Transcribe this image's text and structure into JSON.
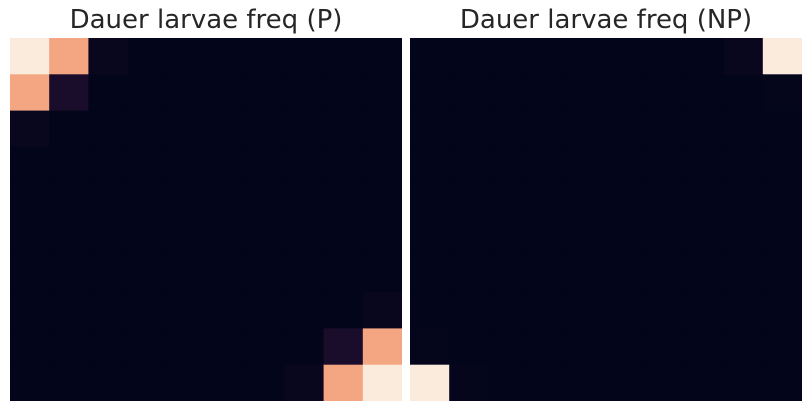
{
  "chart_data": [
    {
      "type": "heatmap",
      "title": "Dauer larvae freq (P)",
      "xlabel": "",
      "ylabel": "",
      "grid": false,
      "colorscale": [
        "#03051a",
        "#1f0f30",
        "#f4a582",
        "#faebdd"
      ],
      "vmin": 0,
      "vmax": 1,
      "values": [
        [
          1.0,
          0.6,
          0.02,
          0,
          0,
          0,
          0,
          0,
          0,
          0
        ],
        [
          0.6,
          0.1,
          0,
          0,
          0,
          0,
          0,
          0,
          0,
          0
        ],
        [
          0.02,
          0,
          0,
          0,
          0,
          0,
          0,
          0,
          0,
          0
        ],
        [
          0,
          0,
          0,
          0,
          0,
          0,
          0,
          0,
          0,
          0
        ],
        [
          0,
          0,
          0,
          0,
          0,
          0,
          0,
          0,
          0,
          0
        ],
        [
          0,
          0,
          0,
          0,
          0,
          0,
          0,
          0,
          0,
          0
        ],
        [
          0,
          0,
          0,
          0,
          0,
          0,
          0,
          0,
          0,
          0
        ],
        [
          0,
          0,
          0,
          0,
          0,
          0,
          0,
          0,
          0,
          0.02
        ],
        [
          0,
          0,
          0,
          0,
          0,
          0,
          0,
          0,
          0.1,
          0.6
        ],
        [
          0,
          0,
          0,
          0,
          0,
          0,
          0,
          0.02,
          0.6,
          1.0
        ]
      ]
    },
    {
      "type": "heatmap",
      "title": "Dauer larvae freq (NP)",
      "xlabel": "",
      "ylabel": "",
      "grid": false,
      "colorscale": [
        "#03051a",
        "#1f0f30",
        "#f4a582",
        "#faebdd"
      ],
      "vmin": 0,
      "vmax": 1,
      "values": [
        [
          0,
          0,
          0,
          0,
          0,
          0,
          0,
          0,
          0.02,
          1.0
        ],
        [
          0,
          0,
          0,
          0,
          0,
          0,
          0,
          0,
          0,
          0.01
        ],
        [
          0,
          0,
          0,
          0,
          0,
          0,
          0,
          0,
          0,
          0
        ],
        [
          0,
          0,
          0,
          0,
          0,
          0,
          0,
          0,
          0,
          0
        ],
        [
          0,
          0,
          0,
          0,
          0,
          0,
          0,
          0,
          0,
          0
        ],
        [
          0,
          0,
          0,
          0,
          0,
          0,
          0,
          0,
          0,
          0
        ],
        [
          0,
          0,
          0,
          0,
          0,
          0,
          0,
          0,
          0,
          0
        ],
        [
          0,
          0,
          0,
          0,
          0,
          0,
          0,
          0,
          0,
          0
        ],
        [
          0.01,
          0,
          0,
          0,
          0,
          0,
          0,
          0,
          0,
          0
        ],
        [
          1.0,
          0.01,
          0,
          0,
          0,
          0,
          0,
          0,
          0,
          0
        ]
      ]
    }
  ]
}
